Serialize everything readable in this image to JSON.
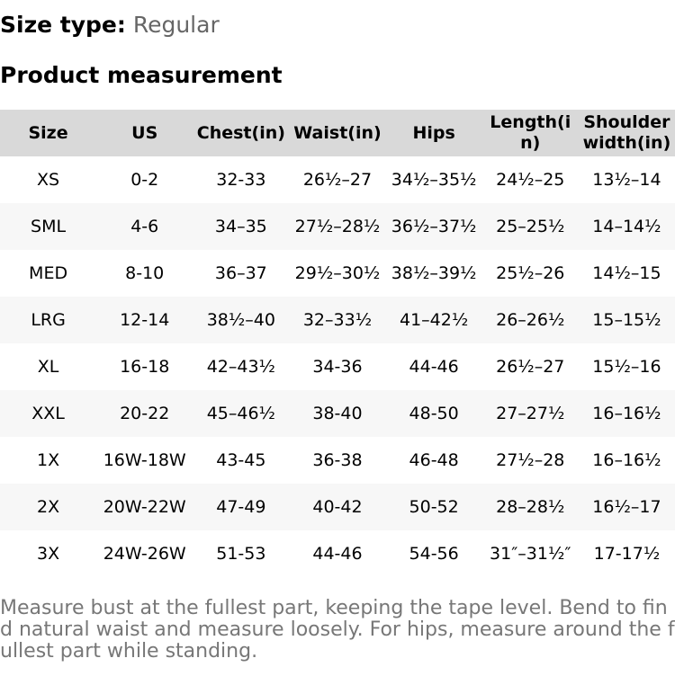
{
  "header": {
    "label": "Size type:",
    "value": "Regular"
  },
  "section_title": "Product measurement",
  "table": {
    "columns": [
      "Size",
      "US",
      "Chest(in)",
      "Waist(in)",
      "Hips",
      "Length(in)",
      "Shoulder width(in)"
    ],
    "rows": [
      [
        "XS",
        "0-2",
        "32-33",
        "26½–27",
        "34½–35½",
        "24½–25",
        "13½–14"
      ],
      [
        "SML",
        "4-6",
        "34–35",
        "27½–28½",
        "36½–37½",
        "25–25½",
        "14–14½"
      ],
      [
        "MED",
        "8-10",
        "36–37",
        "29½–30½",
        "38½–39½",
        "25½–26",
        "14½–15"
      ],
      [
        "LRG",
        "12-14",
        "38½–40",
        "32–33½",
        "41–42½",
        "26–26½",
        "15–15½"
      ],
      [
        "XL",
        "16-18",
        "42–43½",
        "34-36",
        "44-46",
        "26½–27",
        "15½–16"
      ],
      [
        "XXL",
        "20-22",
        "45–46½",
        "38-40",
        "48-50",
        "27–27½",
        "16–16½"
      ],
      [
        "1X",
        "16W-18W",
        "43-45",
        "36-38",
        "46-48",
        "27½–28",
        "16–16½"
      ],
      [
        "2X",
        "20W-22W",
        "47-49",
        "40-42",
        "50-52",
        "28–28½",
        "16½–17"
      ],
      [
        "3X",
        "24W-26W",
        "51-53",
        "44-46",
        "54-56",
        "31″–31½″",
        "17-17½"
      ]
    ]
  },
  "note": "Measure bust at the fullest part, keeping the tape level. Bend to find natural waist and measure loosely. For hips, measure around the fullest part while standing."
}
